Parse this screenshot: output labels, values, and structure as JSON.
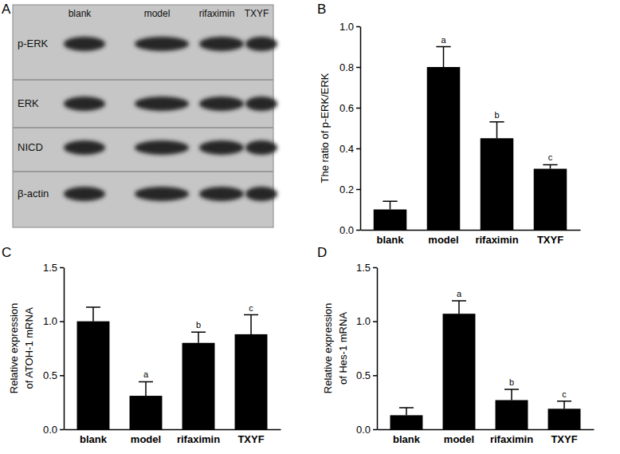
{
  "blot": {
    "panel": "A",
    "lanes": [
      "blank",
      "model",
      "rifaximin",
      "TXYF"
    ],
    "rows": [
      "p-ERK",
      "ERK",
      "NICD",
      "β-actin"
    ]
  },
  "chart_data": [
    {
      "type": "bar",
      "panel": "B",
      "y_label": [
        "The ratio of p-ERK/ERK"
      ],
      "categories": [
        "blank",
        "model",
        "rifaximin",
        "TXYF"
      ],
      "values": [
        0.1,
        0.8,
        0.45,
        0.3
      ],
      "errors": [
        0.04,
        0.1,
        0.08,
        0.02
      ],
      "color": "#000000",
      "ylim": [
        0,
        1.0
      ],
      "yticks": [
        {
          "value": 0,
          "label": "0.0"
        },
        0.2,
        0.4,
        0.6,
        0.8,
        {
          "value": 1.0,
          "label": "1.0"
        }
      ],
      "annotations": [
        {
          "x": "model",
          "text": "a"
        },
        {
          "x": "rifaximin",
          "text": "b"
        },
        {
          "x": "TXYF",
          "text": "c"
        }
      ]
    },
    {
      "type": "bar",
      "panel": "C",
      "y_label": [
        "Relative expression",
        "of ATOH-1 mRNA"
      ],
      "categories": [
        "blank",
        "model",
        "rifaximin",
        "TXYF"
      ],
      "values": [
        1.0,
        0.31,
        0.8,
        0.88
      ],
      "errors": [
        0.13,
        0.13,
        0.1,
        0.18
      ],
      "color": "#000000",
      "ylim": [
        0,
        1.5
      ],
      "yticks": [
        {
          "value": 0,
          "label": "0.0"
        },
        0.5,
        {
          "value": 1.0,
          "label": "1.0"
        },
        1.5
      ],
      "annotations": [
        {
          "x": "model",
          "text": "a"
        },
        {
          "x": "rifaximin",
          "text": "b"
        },
        {
          "x": "TXYF",
          "text": "c"
        }
      ]
    },
    {
      "type": "bar",
      "panel": "D",
      "y_label": [
        "Relative expression",
        "of Hes-1 mRNA"
      ],
      "categories": [
        "blank",
        "model",
        "rifaximin",
        "TXYF"
      ],
      "values": [
        0.13,
        1.07,
        0.27,
        0.19
      ],
      "errors": [
        0.07,
        0.12,
        0.1,
        0.07
      ],
      "color": "#000000",
      "ylim": [
        0,
        1.5
      ],
      "yticks": [
        {
          "value": 0,
          "label": "0.0"
        },
        0.5,
        {
          "value": 1.0,
          "label": "1.0"
        },
        1.5
      ],
      "annotations": [
        {
          "x": "model",
          "text": "a"
        },
        {
          "x": "rifaximin",
          "text": "b"
        },
        {
          "x": "TXYF",
          "text": "c"
        }
      ]
    }
  ]
}
